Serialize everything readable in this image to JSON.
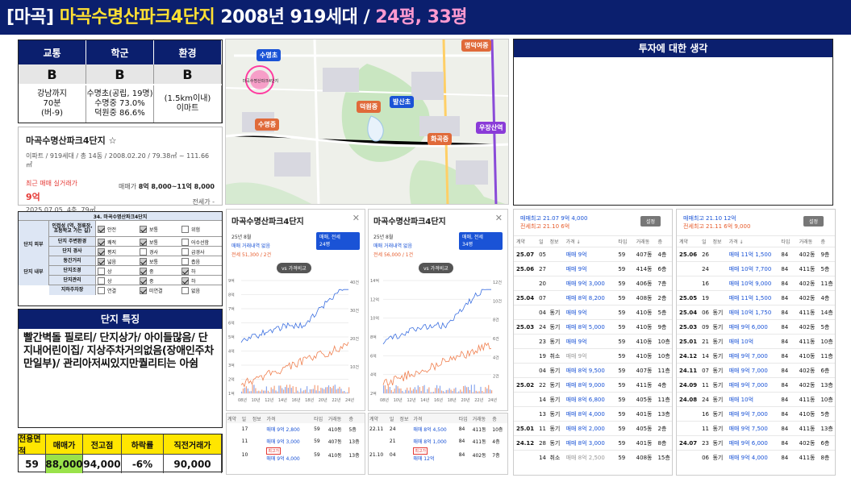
{
  "header": {
    "prefix": "[마곡] ",
    "name": "마곡수명산파크4단지",
    "mid": " 2008년 919세대 / ",
    "sizes": "24평, 33평"
  },
  "grade": {
    "cols": [
      {
        "head": "교통",
        "val": "B",
        "desc": [
          "강남까지",
          "70분",
          "(버-9)"
        ]
      },
      {
        "head": "학군",
        "val": "B",
        "desc": [
          "수명초(공립, 19명)",
          "수명중 73.0%",
          "덕원중 86.6%"
        ]
      },
      {
        "head": "환경",
        "val": "B",
        "desc": [
          "(1.5km이내)",
          "이마트"
        ]
      }
    ]
  },
  "apt": {
    "title": "마곡수명산파크4단지 ☆",
    "meta": "이파트 / 919세대 / 총 14동 / 2008.02.20 / 79.38㎡ ~ 111.66㎡",
    "recent_label": "최근 매매 실거래가",
    "recent_price": "9억",
    "recent_date": "2025.07.05, 4층, 79㎡",
    "ask_label": "매매가",
    "ask_val": "8억 8,000~11억 8,000",
    "jeonse": "전세가 -"
  },
  "map": {
    "labels": [
      {
        "t": "수명초",
        "k": "blue"
      },
      {
        "t": "명덕여중",
        "k": "orange"
      },
      {
        "t": "덕원중",
        "k": "orange"
      },
      {
        "t": "발산초",
        "k": "blue"
      },
      {
        "t": "수명중",
        "k": "orange"
      },
      {
        "t": "화곡중",
        "k": "orange"
      },
      {
        "t": "우장산역",
        "k": "purple"
      }
    ],
    "apt_label": "마곡수명산파크4단지"
  },
  "invest": {
    "title": "투자에 대한 생각"
  },
  "checklist": {
    "title": "34. 마곡수명산파크4단지",
    "rows": [
      {
        "group": "단지 외부",
        "label": "인접성 (역, 정류장, 초등학교 가는 길)",
        "opts": [
          "안전",
          "보통",
          "위험"
        ],
        "sel": [
          1,
          1,
          0
        ]
      },
      {
        "group": "",
        "label": "단지 주변환경",
        "opts": [
          "쾌적",
          "보통",
          "어수선함"
        ],
        "sel": [
          1,
          1,
          0
        ]
      },
      {
        "group": "",
        "label": "단지 경사",
        "opts": [
          "평지",
          "경사",
          "급경사"
        ],
        "sel": [
          1,
          0,
          0
        ]
      },
      {
        "group": "단지 내부",
        "label": "동간거리",
        "opts": [
          "넓음",
          "보통",
          "좁음"
        ],
        "sel": [
          1,
          1,
          0
        ]
      },
      {
        "group": "",
        "label": "단지조경",
        "opts": [
          "상",
          "중",
          "하"
        ],
        "sel": [
          0,
          1,
          1
        ]
      },
      {
        "group": "",
        "label": "단지관리",
        "opts": [
          "상",
          "중",
          "하"
        ],
        "sel": [
          0,
          1,
          1
        ]
      },
      {
        "group": "",
        "label": "지하주차장",
        "opts": [
          "연결",
          "미연결",
          "없음"
        ],
        "sel": [
          0,
          1,
          0
        ]
      }
    ]
  },
  "features": {
    "title": "단지 특징",
    "body": "빨간벽돌 필로티/ 단지상가/ 아이들많음/ 단지내어린이집/ 지상주차거의없음(장애인주차만일부)/ 관리아저씨있지만퀄리티는 아쉼"
  },
  "stats": {
    "heads": [
      "전용면적",
      "매매가",
      "전고점",
      "하락률",
      "직전거래가"
    ],
    "vals": [
      "59",
      "88,000",
      "94,000",
      "-6%",
      "90,000"
    ]
  },
  "panel1": {
    "title": "마곡수명산파크4단지",
    "date": "25년 8월",
    "sub1": "매매 거래내역 없음",
    "sub2": "전세 51,300 / 2건",
    "sel": "매매, 전세",
    "size": "24평",
    "vs": "vs 가격비교",
    "yl": [
      "9억",
      "8억",
      "7억",
      "6억",
      "5억",
      "4억",
      "3억",
      "2억",
      "1억"
    ],
    "yr": [
      "40건",
      "30건",
      "20건",
      "10건"
    ],
    "xl": [
      "08년",
      "10년",
      "12년",
      "14년",
      "16년",
      "18년",
      "20년",
      "22년",
      "24년"
    ],
    "rows": [
      {
        "c": [
          "",
          "17",
          "",
          "매매 9억 2,800",
          "59",
          "410동",
          "5층"
        ],
        "box": ""
      },
      {
        "c": [
          "",
          "11",
          "",
          "매매 9억 3,000",
          "59",
          "407동",
          "13층"
        ],
        "box": ""
      },
      {
        "c": [
          "",
          "10",
          "",
          "매매 9억 4,000",
          "59",
          "410동",
          "13층"
        ],
        "box": "최고가"
      }
    ],
    "hdr": [
      "계약",
      "일",
      "정보",
      "가격",
      "타입",
      "거래동",
      "층"
    ]
  },
  "panel2": {
    "title": "마곡수명산파크4단지",
    "date": "25년 8월",
    "sub1": "매매 거래내역 없음",
    "sub2": "전세 56,000 / 1건",
    "sel": "매매, 전세",
    "size": "34평",
    "vs": "vs 가격비교",
    "yl": [
      "14억",
      "12억",
      "10억",
      "8억",
      "6억",
      "4억",
      "2억"
    ],
    "yr": [
      "12건",
      "10건",
      "8건",
      "6건",
      "4건",
      "2건"
    ],
    "xl": [
      "08년",
      "10년",
      "12년",
      "14년",
      "16년",
      "18년",
      "20년",
      "22년",
      "24년"
    ],
    "rows": [
      {
        "c": [
          "22.11",
          "24",
          "",
          "매매 8억 4,500",
          "84",
          "411동",
          "10층"
        ],
        "box": ""
      },
      {
        "c": [
          "",
          "21",
          "",
          "매매 8억 1,000",
          "84",
          "411동",
          "4층"
        ],
        "box": ""
      },
      {
        "c": [
          "21.10",
          "04",
          "",
          "매매 12억",
          "84",
          "402동",
          "7층"
        ],
        "box": "최고가"
      }
    ],
    "hdr": [
      "계약",
      "일",
      "정보",
      "가격",
      "타입",
      "거래동",
      "층"
    ]
  },
  "hist1": {
    "top1": "매매최고 21.07 9억 4,000",
    "top2": "전세최고 21.10 6억",
    "set": "설정",
    "hdr": [
      "계약",
      "일",
      "정보",
      "가격 ↓",
      "타입",
      "거래동",
      "층"
    ],
    "rows": [
      [
        "25.07",
        "05",
        "",
        "매매 9억",
        "59",
        "407동",
        "4층"
      ],
      [
        "25.06",
        "27",
        "",
        "매매 9억",
        "59",
        "414동",
        "6층"
      ],
      [
        "",
        "20",
        "",
        "매매 9억 3,000",
        "59",
        "406동",
        "7층"
      ],
      [
        "25.04",
        "07",
        "",
        "매매 8억 8,200",
        "59",
        "408동",
        "2층"
      ],
      [
        "",
        "04",
        "동기",
        "매매 9억",
        "59",
        "410동",
        "5층"
      ],
      [
        "25.03",
        "24",
        "동기",
        "매매 8억 5,000",
        "59",
        "410동",
        "9층"
      ],
      [
        "",
        "23",
        "동기",
        "매매 9억",
        "59",
        "410동",
        "10층"
      ],
      [
        "",
        "19",
        "취소",
        "매매 9억",
        "59",
        "410동",
        "10층"
      ],
      [
        "",
        "04",
        "동기",
        "매매 8억 9,500",
        "59",
        "407동",
        "11층"
      ],
      [
        "25.02",
        "22",
        "동기",
        "매매 8억 9,000",
        "59",
        "411동",
        "4층"
      ],
      [
        "",
        "14",
        "동기",
        "매매 8억 6,800",
        "59",
        "405동",
        "11층"
      ],
      [
        "",
        "13",
        "동기",
        "매매 8억 4,000",
        "59",
        "401동",
        "13층"
      ],
      [
        "25.01",
        "11",
        "동기",
        "매매 8억 2,000",
        "59",
        "405동",
        "2층"
      ],
      [
        "24.12",
        "28",
        "동기",
        "매매 8억 3,000",
        "59",
        "401동",
        "8층"
      ],
      [
        "",
        "14",
        "취소",
        "매매 8억 2,500",
        "59",
        "408동",
        "15층"
      ]
    ]
  },
  "hist2": {
    "top1": "매매최고 21.10 12억",
    "top2": "전세최고 21.11 6억 9,000",
    "set": "설정",
    "hdr": [
      "계약",
      "일",
      "정보",
      "가격 ↓",
      "타입",
      "거래동",
      "층"
    ],
    "rows": [
      [
        "25.06",
        "26",
        "",
        "매매 11억 1,500",
        "84",
        "402동",
        "9층"
      ],
      [
        "",
        "24",
        "",
        "매매 10억 7,700",
        "84",
        "411동",
        "5층"
      ],
      [
        "",
        "16",
        "",
        "매매 10억 9,000",
        "84",
        "402동",
        "11층"
      ],
      [
        "25.05",
        "19",
        "",
        "매매 11억 1,500",
        "84",
        "402동",
        "4층"
      ],
      [
        "25.04",
        "06",
        "동기",
        "매매 10억 1,750",
        "84",
        "411동",
        "14층"
      ],
      [
        "25.03",
        "09",
        "동기",
        "매매 9억 6,000",
        "84",
        "402동",
        "5층"
      ],
      [
        "25.01",
        "21",
        "동기",
        "매매 10억",
        "84",
        "411동",
        "10층"
      ],
      [
        "24.12",
        "14",
        "동기",
        "매매 9억 7,000",
        "84",
        "410동",
        "11층"
      ],
      [
        "24.11",
        "07",
        "동기",
        "매매 9억 7,000",
        "84",
        "402동",
        "6층"
      ],
      [
        "24.09",
        "11",
        "동기",
        "매매 9억 7,000",
        "84",
        "402동",
        "13층"
      ],
      [
        "24.08",
        "24",
        "동기",
        "매매 10억",
        "84",
        "411동",
        "10층"
      ],
      [
        "",
        "16",
        "동기",
        "매매 9억 7,000",
        "84",
        "410동",
        "5층"
      ],
      [
        "",
        "11",
        "동기",
        "매매 9억 7,500",
        "84",
        "411동",
        "13층"
      ],
      [
        "24.07",
        "23",
        "동기",
        "매매 9억 6,000",
        "84",
        "402동",
        "6층"
      ],
      [
        "",
        "06",
        "동기",
        "매매 9억 4,000",
        "84",
        "411동",
        "8층"
      ]
    ]
  },
  "colors": {
    "navy": "#0b1f6e",
    "yellow": "#ffe600",
    "green": "#9ae24a",
    "blue": "#1a53d6",
    "orange": "#e65b2b"
  }
}
